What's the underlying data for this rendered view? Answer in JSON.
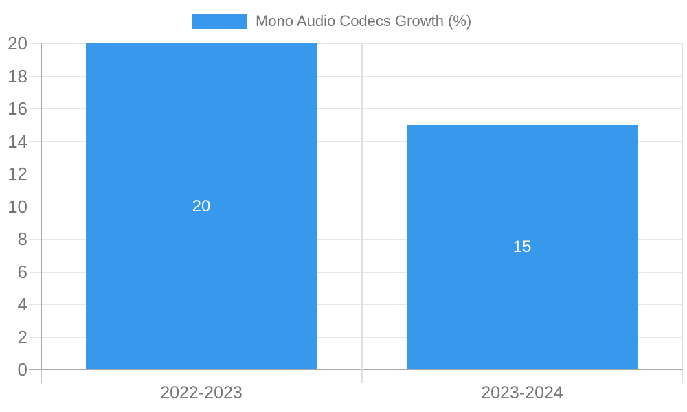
{
  "chart_data": {
    "type": "bar",
    "title": "",
    "legend": "Mono Audio Codecs Growth (%)",
    "legend_position": "top-center",
    "categories": [
      "2022-2023",
      "2023-2024"
    ],
    "series": [
      {
        "name": "Mono Audio Codecs Growth (%)",
        "values": [
          20,
          15
        ]
      }
    ],
    "bar_value_labels": [
      "20",
      "15"
    ],
    "xlabel": "",
    "ylabel": "",
    "ylim": [
      0,
      20
    ],
    "ytick_step": 2,
    "ytick_labels": [
      "0",
      "2",
      "4",
      "6",
      "8",
      "10",
      "12",
      "14",
      "16",
      "18",
      "20"
    ],
    "grid": true,
    "colors": {
      "bar": "#3899ec",
      "gridline": "#e6e6e6",
      "boundary_line": "#e0e0e0",
      "axis_line": "#a8a8a8",
      "axis_tick_below": "#c8c8c8",
      "tick_label": "#757575",
      "legend_text": "#757575",
      "bar_label": "#ffffff",
      "background": "#ffffff"
    }
  }
}
